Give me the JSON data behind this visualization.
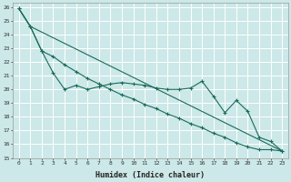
{
  "xlabel": "Humidex (Indice chaleur)",
  "bg_color": "#cce8e8",
  "grid_color": "#ffffff",
  "line_color": "#1a6b5a",
  "xlim": [
    -0.5,
    23.5
  ],
  "ylim": [
    15,
    26.3
  ],
  "yticks": [
    15,
    16,
    17,
    18,
    19,
    20,
    21,
    22,
    23,
    24,
    25,
    26
  ],
  "xticks": [
    0,
    1,
    2,
    3,
    4,
    5,
    6,
    7,
    8,
    9,
    10,
    11,
    12,
    13,
    14,
    15,
    16,
    17,
    18,
    19,
    20,
    21,
    22,
    23
  ],
  "line1_x": [
    0,
    1,
    2,
    3,
    4,
    5,
    6,
    7,
    8,
    9,
    10,
    11,
    12,
    13,
    14,
    15,
    16,
    17,
    18,
    19,
    20,
    21,
    22,
    23
  ],
  "line1_y": [
    25.9,
    24.6,
    22.8,
    21.2,
    20.0,
    20.3,
    20.0,
    20.2,
    20.4,
    20.5,
    20.4,
    20.3,
    20.1,
    20.0,
    20.0,
    20.1,
    20.6,
    19.5,
    18.3,
    19.2,
    18.4,
    16.5,
    16.2,
    15.5
  ],
  "line2_x": [
    0,
    1,
    2,
    3,
    4,
    5,
    6,
    7,
    8,
    9,
    10,
    11,
    12,
    13,
    14,
    15,
    16,
    17,
    18,
    19,
    20,
    21,
    22,
    23
  ],
  "line2_y": [
    25.9,
    24.6,
    22.8,
    22.4,
    21.8,
    21.3,
    20.8,
    20.4,
    20.0,
    19.6,
    19.3,
    18.9,
    18.6,
    18.2,
    17.9,
    17.5,
    17.2,
    16.8,
    16.5,
    16.1,
    15.8,
    15.6,
    15.6,
    15.5
  ],
  "line3_x": [
    0,
    1,
    23
  ],
  "line3_y": [
    25.9,
    24.6,
    15.5
  ]
}
